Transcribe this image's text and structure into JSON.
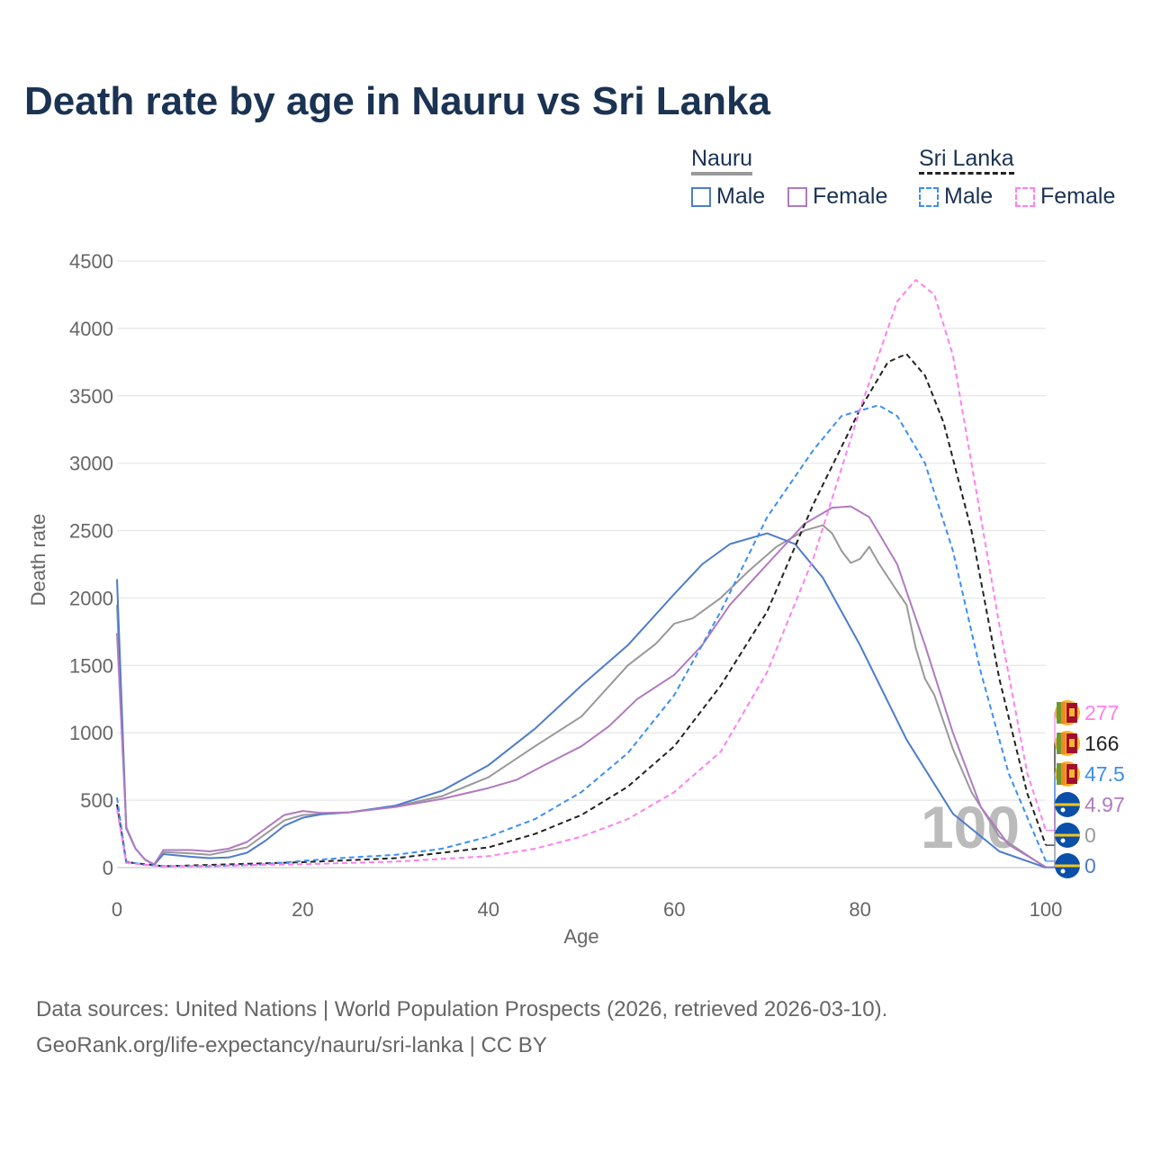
{
  "title": "Death rate by age in Nauru vs Sri Lanka",
  "legend": {
    "groups": [
      {
        "name": "Nauru",
        "items": [
          {
            "label": "Male",
            "color": "#4d7ccc",
            "dashed": false
          },
          {
            "label": "Female",
            "color": "#b07ac0",
            "dashed": false
          }
        ]
      },
      {
        "name": "Sri Lanka",
        "items": [
          {
            "label": "Male",
            "color": "#3d8ef2",
            "dashed": true
          },
          {
            "label": "Female",
            "color": "#ff80ee",
            "dashed": true
          }
        ]
      }
    ]
  },
  "watermark": "100",
  "footer": {
    "line1": "Data sources: United Nations | World Population Prospects (2026, retrieved 2026-03-10).",
    "line2": "GeoRank.org/life-expectancy/nauru/sri-lanka | CC BY"
  },
  "chart_data": {
    "type": "line",
    "title": "Death rate by age in Nauru vs Sri Lanka",
    "xlabel": "Age",
    "ylabel": "Death rate",
    "xlim": [
      0,
      100
    ],
    "ylim": [
      0,
      4500
    ],
    "xticks": [
      0,
      20,
      40,
      60,
      80,
      100
    ],
    "yticks": [
      0,
      500,
      1000,
      1500,
      2000,
      2500,
      3000,
      3500,
      4000,
      4500
    ],
    "grid": true,
    "legend_position": "top-right",
    "series": [
      {
        "name": "Nauru Total",
        "color": "#999999",
        "dashed": false,
        "end_label": "0",
        "x": [
          0,
          1,
          2,
          3,
          4,
          5,
          8,
          10,
          14,
          18,
          20,
          25,
          30,
          35,
          40,
          45,
          50,
          55,
          58,
          60,
          62,
          65,
          68,
          71,
          74,
          76,
          77,
          78,
          79,
          80,
          81,
          82,
          84,
          85,
          86,
          87,
          88,
          90,
          92,
          95,
          100
        ],
        "y": [
          1950,
          295,
          140,
          60,
          22,
          115,
          105,
          95,
          150,
          350,
          390,
          410,
          455,
          530,
          670,
          900,
          1120,
          1500,
          1660,
          1810,
          1850,
          2000,
          2200,
          2380,
          2500,
          2540,
          2480,
          2350,
          2260,
          2290,
          2380,
          2260,
          2050,
          1950,
          1630,
          1400,
          1280,
          880,
          560,
          230,
          0
        ]
      },
      {
        "name": "Nauru Male",
        "color": "#4d7ccc",
        "dashed": false,
        "end_label": "0",
        "x": [
          0,
          1,
          2,
          3,
          4,
          5,
          8,
          10,
          12,
          14,
          16,
          18,
          20,
          22,
          25,
          30,
          35,
          40,
          45,
          50,
          55,
          60,
          63,
          66,
          70,
          73,
          76,
          80,
          85,
          90,
          95,
          100
        ],
        "y": [
          2140,
          290,
          140,
          60,
          20,
          100,
          80,
          70,
          75,
          110,
          200,
          310,
          370,
          395,
          410,
          460,
          570,
          760,
          1030,
          1350,
          1650,
          2030,
          2250,
          2400,
          2480,
          2400,
          2150,
          1650,
          950,
          400,
          120,
          0
        ]
      },
      {
        "name": "Nauru Female",
        "color": "#b07ac0",
        "dashed": false,
        "end_label": "4.97",
        "x": [
          0,
          1,
          2,
          3,
          4,
          5,
          8,
          10,
          12,
          14,
          16,
          18,
          20,
          22,
          25,
          30,
          35,
          40,
          43,
          46,
          50,
          53,
          56,
          60,
          63,
          66,
          70,
          74,
          77,
          79,
          81,
          84,
          87,
          90,
          93,
          96,
          100
        ],
        "y": [
          1740,
          300,
          140,
          60,
          25,
          130,
          130,
          120,
          140,
          190,
          290,
          390,
          420,
          405,
          410,
          450,
          510,
          590,
          650,
          760,
          900,
          1050,
          1250,
          1430,
          1650,
          1950,
          2250,
          2550,
          2670,
          2680,
          2600,
          2250,
          1650,
          1000,
          450,
          170,
          5
        ]
      },
      {
        "name": "Sri Lanka Total",
        "color": "#222222",
        "dashed": true,
        "end_label": "166",
        "x": [
          0,
          1,
          5,
          20,
          30,
          40,
          45,
          50,
          55,
          60,
          65,
          70,
          75,
          80,
          83,
          85,
          87,
          89,
          92,
          95,
          98,
          100
        ],
        "y": [
          470,
          40,
          10,
          40,
          70,
          150,
          250,
          390,
          600,
          900,
          1350,
          1900,
          2700,
          3400,
          3750,
          3810,
          3650,
          3300,
          2500,
          1400,
          550,
          166
        ]
      },
      {
        "name": "Sri Lanka Male",
        "color": "#3d8ef2",
        "dashed": true,
        "end_label": "47.5",
        "x": [
          0,
          1,
          3,
          5,
          10,
          15,
          20,
          25,
          30,
          35,
          40,
          45,
          50,
          55,
          60,
          65,
          70,
          75,
          78,
          82,
          84,
          87,
          90,
          93,
          96,
          100
        ],
        "y": [
          520,
          45,
          20,
          12,
          10,
          20,
          50,
          75,
          95,
          140,
          230,
          360,
          560,
          850,
          1280,
          1900,
          2600,
          3100,
          3350,
          3430,
          3350,
          3000,
          2350,
          1450,
          700,
          47.5
        ]
      },
      {
        "name": "Sri Lanka Female",
        "color": "#ff80ee",
        "dashed": true,
        "end_label": "277",
        "x": [
          0,
          1,
          5,
          20,
          30,
          40,
          45,
          50,
          55,
          60,
          65,
          70,
          75,
          80,
          84,
          86,
          88,
          90,
          92,
          95,
          98,
          100
        ],
        "y": [
          430,
          35,
          8,
          25,
          45,
          85,
          140,
          230,
          360,
          560,
          860,
          1450,
          2300,
          3400,
          4200,
          4360,
          4250,
          3800,
          3000,
          1800,
          700,
          277
        ]
      }
    ]
  }
}
